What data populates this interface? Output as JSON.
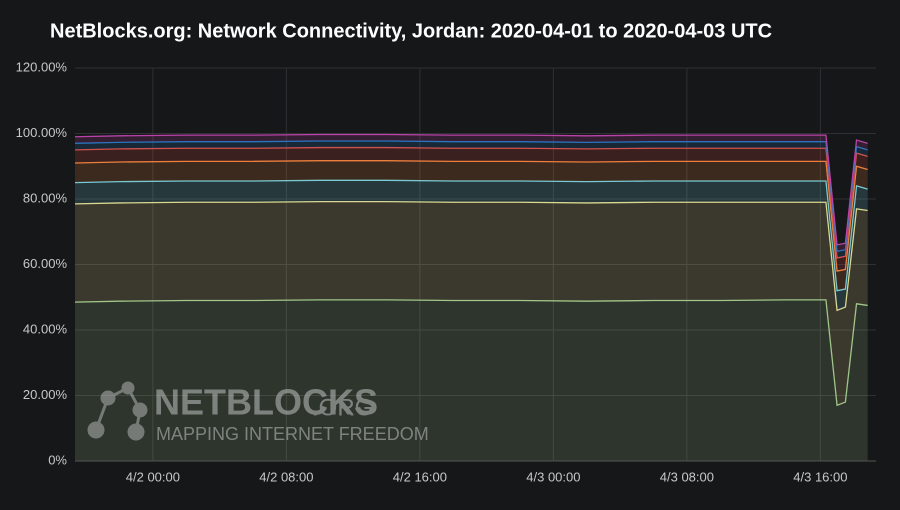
{
  "chart_data": {
    "type": "stacked-area",
    "title": "NetBlocks.org: Network Connectivity, Jordan: 2020-04-01 to 2020-04-03 UTC",
    "watermark": {
      "brand": "NETBLOCKS",
      "suffix": ".ORG",
      "tagline": "MAPPING INTERNET FREEDOM"
    },
    "x": [
      "4/1 19:20",
      "4/1 22:00",
      "4/2 02:00",
      "4/2 06:00",
      "4/2 10:00",
      "4/2 14:00",
      "4/2 18:00",
      "4/2 22:00",
      "4/3 02:00",
      "4/3 06:00",
      "4/3 10:00",
      "4/3 14:00",
      "4/3 16:20",
      "4/3 17:00",
      "4/3 17:30",
      "4/3 18:10",
      "4/3 18:50"
    ],
    "xlim": [
      "4/1 19:20",
      "4/3 19:20"
    ],
    "xticks": [
      "4/2 00:00",
      "4/2 08:00",
      "4/2 16:00",
      "4/3 00:00",
      "4/3 08:00",
      "4/3 16:00"
    ],
    "ylim": [
      0,
      120
    ],
    "yticks": [
      {
        "value": 0,
        "label": "0%"
      },
      {
        "value": 20,
        "label": "20.00%"
      },
      {
        "value": 40,
        "label": "40.00%"
      },
      {
        "value": 60,
        "label": "60.00%"
      },
      {
        "value": 80,
        "label": "80.00%"
      },
      {
        "value": 100,
        "label": "100.00%"
      },
      {
        "value": 120,
        "label": "120.00%"
      }
    ],
    "grid": true,
    "series": [
      {
        "color": "#9ac48a",
        "values": [
          48.5,
          48.8,
          49,
          49,
          49.2,
          49.2,
          49,
          49,
          48.8,
          49,
          49,
          49.2,
          49.2,
          17,
          18,
          48,
          47.5
        ]
      },
      {
        "color": "#e5d98a",
        "values": [
          30,
          30,
          30,
          30,
          30,
          30,
          30,
          30,
          30,
          30,
          30,
          29.8,
          29.8,
          29,
          29,
          29,
          29
        ]
      },
      {
        "color": "#6ed0e0",
        "values": [
          6.5,
          6.5,
          6.5,
          6.5,
          6.5,
          6.5,
          6.5,
          6.5,
          6.5,
          6.5,
          6.5,
          6.5,
          6.5,
          6,
          5.5,
          7,
          6.5
        ]
      },
      {
        "color": "#ef843c",
        "values": [
          6,
          6,
          6,
          6,
          6,
          6,
          6,
          6,
          6,
          6,
          6,
          6,
          6,
          6,
          6,
          6,
          6
        ]
      },
      {
        "color": "#e24d42",
        "values": [
          4,
          4,
          4,
          4,
          4,
          4,
          4,
          4,
          4,
          4,
          4,
          4,
          4,
          4,
          4,
          4,
          4
        ]
      },
      {
        "color": "#1f78c1",
        "values": [
          2,
          2,
          2,
          2,
          2,
          2,
          2,
          2,
          2,
          2,
          2,
          2,
          2,
          2,
          2,
          2,
          2
        ]
      },
      {
        "color": "#ba43a9",
        "values": [
          2,
          2,
          2,
          2,
          2,
          2,
          2,
          2,
          2,
          2,
          2,
          2,
          2,
          2,
          2,
          2,
          2
        ]
      }
    ]
  }
}
